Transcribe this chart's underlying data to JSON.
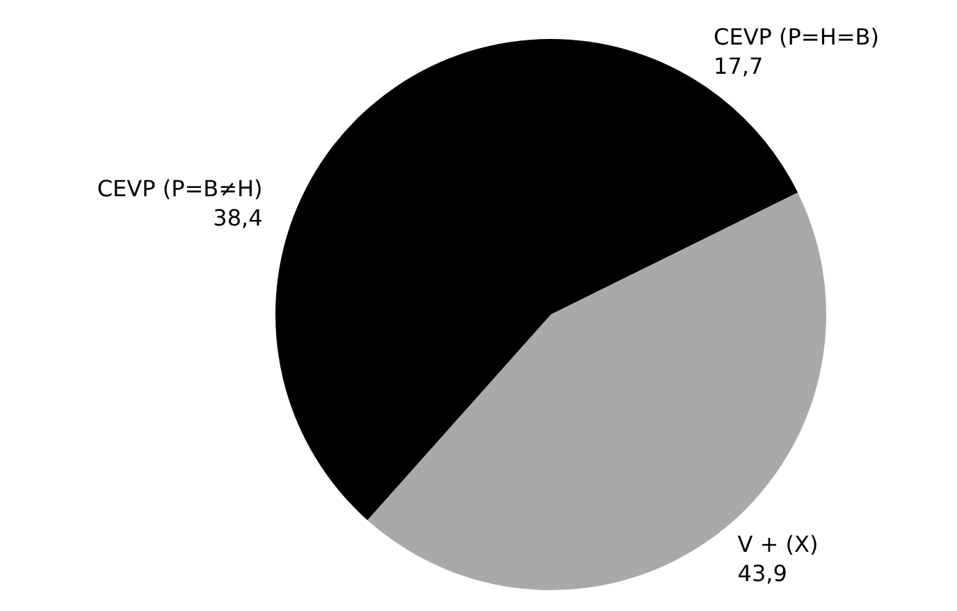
{
  "chart_data": {
    "type": "pie",
    "categories": [
      "CEVP (P=H=B)",
      "V + (X)",
      "CEVP (P=B≠H)"
    ],
    "values": [
      17.7,
      43.9,
      38.4
    ],
    "value_labels": [
      "17,7",
      "43,9",
      "38,4"
    ],
    "colors": [
      "#000000",
      "#a9a9a9",
      "#000000"
    ],
    "legend": false
  }
}
